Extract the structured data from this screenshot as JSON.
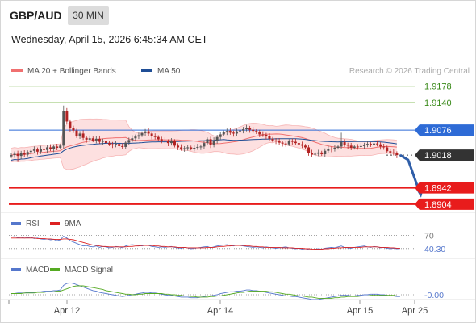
{
  "header": {
    "symbol": "GBP/AUD",
    "timeframe": "30 MIN",
    "datetime": "Wednesday, April 15, 2026 6:45:34 AM CET"
  },
  "colors": {
    "bollinger": "#f07070",
    "bollinger_fill": "#fde0e0",
    "ma50": "#1f4e96",
    "resistance": "#8dc063",
    "pivot": "#2e6bd6",
    "support": "#e81c1c",
    "current": "#333333",
    "arrow": "#2f5ea8",
    "candle_up": "#555555",
    "candle_down": "#b22222",
    "rsi": "#5577cc",
    "rsi_ma": "#dd2222",
    "macd": "#5577cc",
    "macd_signal": "#55aa22"
  },
  "chart_data": [
    {
      "type": "candlestick",
      "legend": [
        {
          "name": "MA 20 + Bollinger Bands",
          "color": "#f07070"
        },
        {
          "name": "MA 50",
          "color": "#1f4e96"
        }
      ],
      "legend_position": "top-left",
      "copyright": "Research © 2026 Trading Central",
      "grid": false,
      "ylim": [
        1.8885,
        1.9215
      ],
      "x_ticks": [
        "Apr 12",
        "Apr 14",
        "Apr 15",
        "Apr 25"
      ],
      "levels": [
        {
          "label": "1.9178",
          "value": 1.9178,
          "role": "resistance"
        },
        {
          "label": "1.9140",
          "value": 1.914,
          "role": "resistance"
        },
        {
          "label": "1.9076",
          "value": 1.9076,
          "role": "pivot"
        },
        {
          "label": "1.9018",
          "value": 1.9018,
          "role": "current"
        },
        {
          "label": "1.8942",
          "value": 1.8942,
          "role": "support"
        },
        {
          "label": "1.8904",
          "value": 1.8904,
          "role": "support"
        }
      ],
      "close": [
        1.9018,
        1.9021,
        1.9016,
        1.9023,
        1.9019,
        1.9025,
        1.9028,
        1.9031,
        1.9026,
        1.9033,
        1.903,
        1.9036,
        1.9032,
        1.9038,
        1.9035,
        1.904,
        1.912,
        1.9096,
        1.908,
        1.9075,
        1.9062,
        1.9068,
        1.9058,
        1.9054,
        1.9057,
        1.9052,
        1.9056,
        1.9049,
        1.9051,
        1.9046,
        1.9043,
        1.9041,
        1.9044,
        1.9039,
        1.9037,
        1.9047,
        1.9053,
        1.9057,
        1.9061,
        1.9064,
        1.9069,
        1.9073,
        1.9068,
        1.9062,
        1.906,
        1.9055,
        1.9052,
        1.905,
        1.9046,
        1.9051,
        1.904,
        1.9036,
        1.9033,
        1.9034,
        1.9036,
        1.9033,
        1.9035,
        1.9037,
        1.9038,
        1.9046,
        1.9055,
        1.9041,
        1.9052,
        1.906,
        1.9066,
        1.9071,
        1.9074,
        1.907,
        1.9068,
        1.9073,
        1.9075,
        1.9078,
        1.9081,
        1.9077,
        1.9074,
        1.9071,
        1.9066,
        1.9065,
        1.9062,
        1.9056,
        1.9052,
        1.905,
        1.9047,
        1.9045,
        1.9043,
        1.9051,
        1.9049,
        1.9046,
        1.9043,
        1.904,
        1.9036,
        1.9023,
        1.9019,
        1.9021,
        1.9024,
        1.902,
        1.9028,
        1.9033,
        1.9032,
        1.9035,
        1.9038,
        1.9048,
        1.9042,
        1.904,
        1.9035,
        1.9038,
        1.9037,
        1.9039,
        1.9042,
        1.9044,
        1.9041,
        1.9045,
        1.9043,
        1.9038,
        1.9036,
        1.9027,
        1.9024,
        1.9022,
        1.9018
      ]
    },
    {
      "type": "line",
      "legend": [
        {
          "name": "RSI",
          "color": "#5577cc"
        },
        {
          "name": "9MA",
          "color": "#dd2222"
        }
      ],
      "levels": [
        {
          "label": "70",
          "value": 70
        },
        {
          "label": "40.30",
          "value": 40.3
        }
      ],
      "ylim": [
        20,
        80
      ],
      "series": [
        {
          "name": "RSI",
          "values": [
            66,
            67,
            65,
            66,
            64,
            65,
            66,
            63,
            64,
            62,
            61,
            62,
            60,
            61,
            58,
            60,
            68,
            64,
            58,
            55,
            52,
            49,
            46,
            47,
            45,
            44,
            46,
            43,
            45,
            44,
            42,
            43,
            45,
            44,
            42,
            46,
            48,
            49,
            48,
            47,
            46,
            48,
            47,
            45,
            44,
            43,
            44,
            43,
            44,
            45,
            43,
            42,
            41,
            43,
            42,
            40,
            41,
            42,
            43,
            44,
            45,
            42,
            44,
            46,
            47,
            48,
            49,
            47,
            46,
            48,
            47,
            46,
            45,
            44,
            43,
            44,
            43,
            42,
            44,
            43,
            42,
            41,
            42,
            43,
            44,
            42,
            41,
            40,
            41,
            39,
            40,
            38,
            37,
            39,
            40,
            39,
            41,
            42,
            43,
            42,
            44,
            46,
            43,
            42,
            41,
            43,
            44,
            45,
            46,
            44,
            43,
            45,
            44,
            42,
            43,
            41,
            40,
            41,
            40,
            40.3
          ]
        },
        {
          "name": "9MA",
          "values": [
            64,
            64,
            64,
            64,
            64,
            64,
            64,
            64,
            63,
            63,
            63,
            62,
            62,
            61,
            61,
            61,
            62,
            62,
            61,
            60,
            58,
            56,
            54,
            52,
            50,
            48,
            47,
            46,
            45,
            45,
            44,
            44,
            44,
            44,
            44,
            44,
            45,
            45,
            46,
            46,
            47,
            47,
            47,
            47,
            46,
            46,
            45,
            45,
            44,
            44,
            44,
            43,
            43,
            43,
            42,
            42,
            42,
            42,
            42,
            42,
            43,
            43,
            43,
            44,
            45,
            45,
            46,
            46,
            47,
            47,
            47,
            47,
            46,
            46,
            45,
            45,
            44,
            44,
            43,
            43,
            43,
            43,
            43,
            42,
            42,
            42,
            42,
            41,
            41,
            41,
            40,
            40,
            39,
            39,
            39,
            39,
            40,
            40,
            41,
            41,
            42,
            42,
            43,
            43,
            43,
            43,
            43,
            43,
            44,
            44,
            44,
            44,
            44,
            43,
            43,
            43,
            42,
            42,
            41,
            41
          ]
        }
      ]
    },
    {
      "type": "line",
      "legend": [
        {
          "name": "MACD",
          "color": "#5577cc"
        },
        {
          "name": "MACD Signal",
          "color": "#55aa22"
        }
      ],
      "levels": [
        {
          "label": "-0.00",
          "value": 0
        }
      ],
      "ylim": [
        -0.003,
        0.003
      ],
      "series": [
        {
          "name": "MACD",
          "values": [
            0.0002,
            0.0002,
            0.0003,
            0.0003,
            0.0003,
            0.0004,
            0.0004,
            0.0004,
            0.0005,
            0.0005,
            0.0006,
            0.0006,
            0.0006,
            0.0007,
            0.0007,
            0.0008,
            0.0016,
            0.0019,
            0.002,
            0.0019,
            0.0017,
            0.0015,
            0.0013,
            0.0011,
            0.0009,
            0.0007,
            0.0006,
            0.0004,
            0.0003,
            0.0002,
            0.0001,
            0.0,
            -0.0001,
            -0.0002,
            -0.0003,
            -0.0002,
            -0.0001,
            0.0,
            0.0001,
            0.0002,
            0.0003,
            0.0004,
            0.0004,
            0.0003,
            0.0003,
            0.0002,
            0.0001,
            0.0,
            -0.0001,
            -0.0001,
            -0.0002,
            -0.0003,
            -0.0004,
            -0.0004,
            -0.0004,
            -0.0005,
            -0.0005,
            -0.0005,
            -0.0004,
            -0.0003,
            -0.0002,
            -0.0002,
            -0.0001,
            0.0,
            0.0002,
            0.0003,
            0.0004,
            0.0005,
            0.0005,
            0.0006,
            0.0006,
            0.0007,
            0.0008,
            0.0008,
            0.0007,
            0.0007,
            0.0006,
            0.0005,
            0.0004,
            0.0003,
            0.0002,
            0.0001,
            0.0,
            -0.0001,
            -0.0002,
            -0.0002,
            -0.0003,
            -0.0003,
            -0.0004,
            -0.0005,
            -0.0006,
            -0.0007,
            -0.0008,
            -0.0008,
            -0.0008,
            -0.0007,
            -0.0006,
            -0.0005,
            -0.0004,
            -0.0003,
            -0.0002,
            -0.0001,
            -0.0001,
            -0.0001,
            -0.0002,
            -0.0002,
            -0.0001,
            -0.0001,
            0.0,
            0.0,
            0.0001,
            0.0001,
            0.0001,
            0.0,
            0.0,
            -0.0001,
            -0.0002,
            -0.0002,
            -0.0003,
            -0.0003
          ]
        },
        {
          "name": "MACD Signal",
          "values": [
            0.0002,
            0.0002,
            0.0002,
            0.0002,
            0.0003,
            0.0003,
            0.0003,
            0.0003,
            0.0004,
            0.0004,
            0.0004,
            0.0005,
            0.0005,
            0.0005,
            0.0006,
            0.0006,
            0.0008,
            0.001,
            0.0012,
            0.0014,
            0.0015,
            0.0015,
            0.0015,
            0.0014,
            0.0013,
            0.0012,
            0.0011,
            0.001,
            0.0009,
            0.0007,
            0.0006,
            0.0005,
            0.0004,
            0.0003,
            0.0002,
            0.0001,
            0.0001,
            0.0,
            0.0,
            0.0001,
            0.0001,
            0.0002,
            0.0002,
            0.0002,
            0.0002,
            0.0002,
            0.0002,
            0.0001,
            0.0001,
            0.0,
            0.0,
            -0.0001,
            -0.0001,
            -0.0002,
            -0.0002,
            -0.0003,
            -0.0003,
            -0.0004,
            -0.0004,
            -0.0004,
            -0.0004,
            -0.0003,
            -0.0003,
            -0.0002,
            -0.0002,
            -0.0001,
            0.0,
            0.0001,
            0.0002,
            0.0003,
            0.0004,
            0.0004,
            0.0005,
            0.0006,
            0.0006,
            0.0006,
            0.0006,
            0.0006,
            0.0006,
            0.0005,
            0.0005,
            0.0004,
            0.0003,
            0.0002,
            0.0001,
            0.0001,
            0.0,
            -0.0001,
            -0.0002,
            -0.0002,
            -0.0003,
            -0.0004,
            -0.0004,
            -0.0005,
            -0.0006,
            -0.0006,
            -0.0006,
            -0.0006,
            -0.0006,
            -0.0005,
            -0.0005,
            -0.0004,
            -0.0004,
            -0.0003,
            -0.0003,
            -0.0003,
            -0.0003,
            -0.0002,
            -0.0002,
            -0.0002,
            -0.0001,
            -0.0001,
            -0.0001,
            -0.0001,
            -0.0001,
            -0.0001,
            -0.0001,
            -0.0001,
            -0.0002,
            -0.0002
          ]
        }
      ]
    }
  ]
}
